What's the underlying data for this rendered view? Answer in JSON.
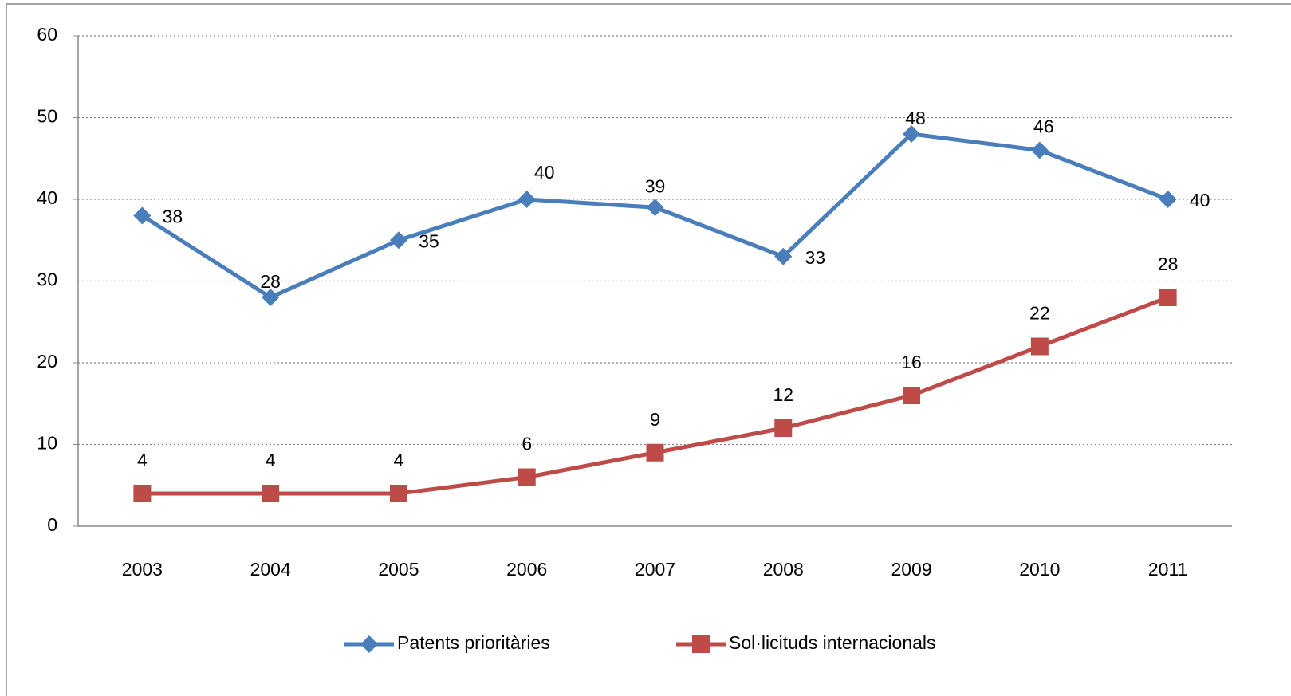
{
  "chart_data": {
    "type": "line",
    "categories": [
      "2003",
      "2004",
      "2005",
      "2006",
      "2007",
      "2008",
      "2009",
      "2010",
      "2011"
    ],
    "series": [
      {
        "name": "Patents prioritàries",
        "color": "#4a7ebb",
        "marker": "diamond",
        "values": [
          38,
          28,
          35,
          40,
          39,
          33,
          48,
          46,
          40
        ]
      },
      {
        "name": "Sol·licituds internacionals",
        "color": "#be4b48",
        "marker": "square",
        "values": [
          4,
          4,
          4,
          6,
          9,
          12,
          16,
          22,
          28
        ]
      }
    ],
    "ylim": [
      0,
      60
    ],
    "yticks": [
      0,
      10,
      20,
      30,
      40,
      50,
      60
    ],
    "grid": true,
    "legend": "bottom"
  }
}
